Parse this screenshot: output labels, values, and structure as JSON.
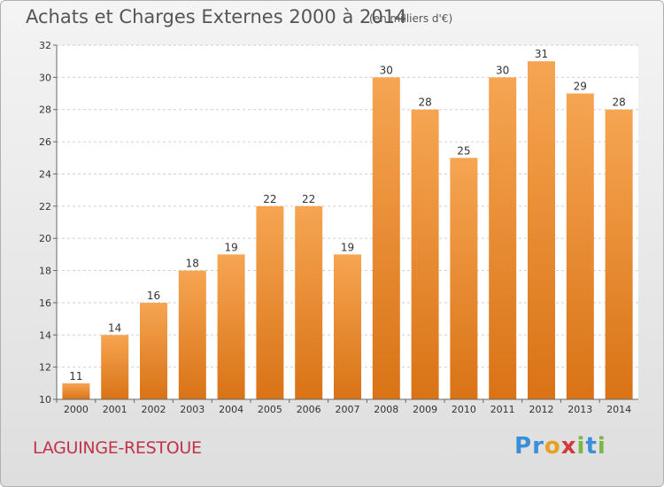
{
  "title": "Achats et Charges Externes 2000 à 2014",
  "subtitle": "(en milliers d'€)",
  "commune": "LAGUINGE-RESTOUE",
  "logo": {
    "letters": [
      "P",
      "r",
      "o",
      "x",
      "i",
      "t",
      "i"
    ],
    "colors": [
      "#3a8fd6",
      "#3a8fd6",
      "#e8a020",
      "#d03a3a",
      "#7ab648",
      "#3a8fd6",
      "#7ab648"
    ]
  },
  "chart_data": {
    "type": "bar",
    "categories": [
      "2000",
      "2001",
      "2002",
      "2003",
      "2004",
      "2005",
      "2006",
      "2007",
      "2008",
      "2009",
      "2010",
      "2011",
      "2012",
      "2013",
      "2014"
    ],
    "values": [
      11,
      14,
      16,
      18,
      19,
      22,
      22,
      19,
      30,
      28,
      25,
      30,
      31,
      29,
      28
    ],
    "ylim": [
      10,
      32
    ],
    "yticks": [
      10,
      12,
      14,
      16,
      18,
      20,
      22,
      24,
      26,
      28,
      30,
      32
    ],
    "grid": true,
    "bar_color_top": "#f6a552",
    "bar_color_bottom": "#d97316"
  }
}
